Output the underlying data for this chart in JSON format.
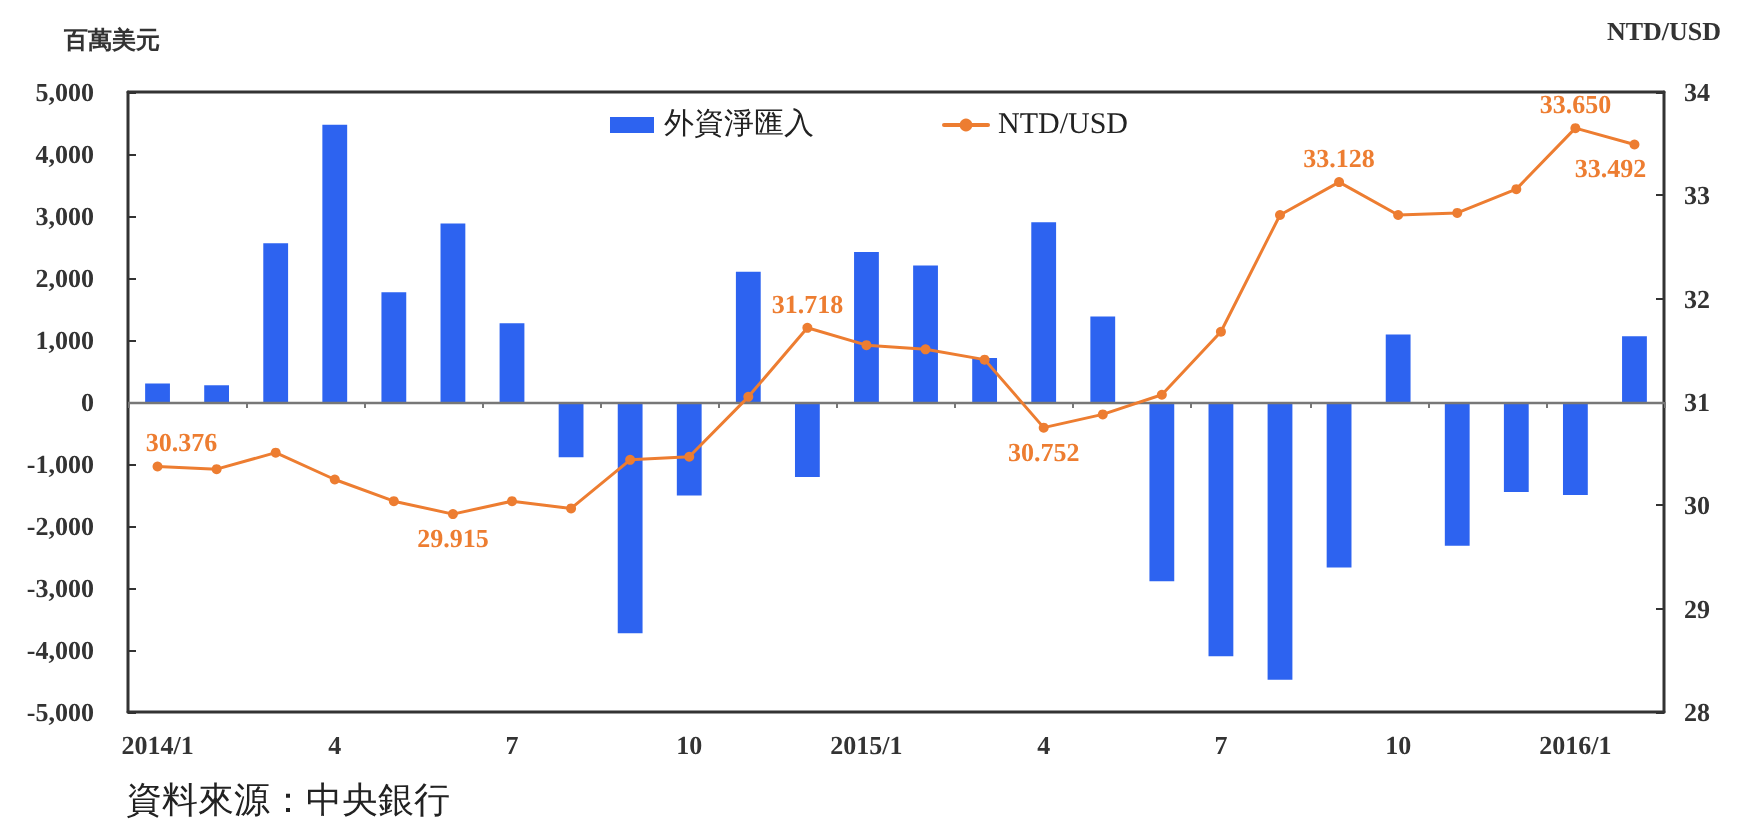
{
  "chart_data": {
    "type": "bar",
    "categories": [
      "2014/1",
      null,
      null,
      "4",
      null,
      null,
      "7",
      null,
      null,
      "10",
      null,
      null,
      "2015/1",
      null,
      null,
      "4",
      null,
      null,
      "7",
      null,
      null,
      "10",
      null,
      null,
      "2016/1",
      null
    ],
    "series": [
      {
        "name": "外資淨匯入",
        "color": "#2d63f0",
        "values": [
          300,
          270,
          2560,
          4470,
          1770,
          2880,
          1270,
          -890,
          -3730,
          -1510,
          2100,
          -1210,
          2420,
          2200,
          710,
          2900,
          1380,
          -2890,
          -4100,
          -4480,
          -2670,
          1090,
          -2320,
          -1450,
          -1500,
          1060
        ]
      },
      {
        "name": "NTD/USD",
        "type": "line",
        "axis": "y2",
        "color": "#ed7d31",
        "values": [
          30.376,
          30.35,
          30.51,
          30.25,
          30.04,
          29.915,
          30.04,
          29.97,
          30.44,
          30.47,
          31.05,
          31.718,
          31.55,
          31.51,
          31.41,
          30.752,
          30.88,
          31.07,
          31.68,
          32.81,
          33.128,
          32.81,
          32.83,
          33.06,
          33.65,
          33.492
        ],
        "value_labels": [
          "30.376",
          null,
          null,
          null,
          null,
          "29.915",
          null,
          null,
          null,
          null,
          null,
          "31.718",
          null,
          null,
          null,
          "30.752",
          null,
          null,
          null,
          null,
          "33.128",
          null,
          null,
          null,
          "33.650",
          "33.492"
        ]
      }
    ],
    "ylabel": "百萬美元",
    "y2label": "NTD/USD",
    "ylim": [
      -5000,
      5000
    ],
    "yticks": [
      {
        "value": -5000,
        "label": "-5,000"
      },
      {
        "value": -4000,
        "label": "-4,000"
      },
      {
        "value": -3000,
        "label": "-3,000"
      },
      {
        "value": -2000,
        "label": "-2,000"
      },
      {
        "value": -1000,
        "label": "-1,000"
      },
      0,
      {
        "value": 1000,
        "label": "1,000"
      },
      {
        "value": 2000,
        "label": "2,000"
      },
      {
        "value": 3000,
        "label": "3,000"
      },
      {
        "value": 4000,
        "label": "4,000"
      },
      {
        "value": 5000,
        "label": "5,000"
      }
    ],
    "y2lim": [
      28,
      34
    ],
    "y2ticks": [
      28,
      29,
      30,
      31,
      32,
      33,
      34
    ],
    "ref_lines": [
      {
        "axis": "y",
        "value": 0
      }
    ],
    "grid": false,
    "legend": "top",
    "marker": "circle",
    "line_style": "solid",
    "annotations": [
      "資料來源：中央銀行"
    ]
  }
}
